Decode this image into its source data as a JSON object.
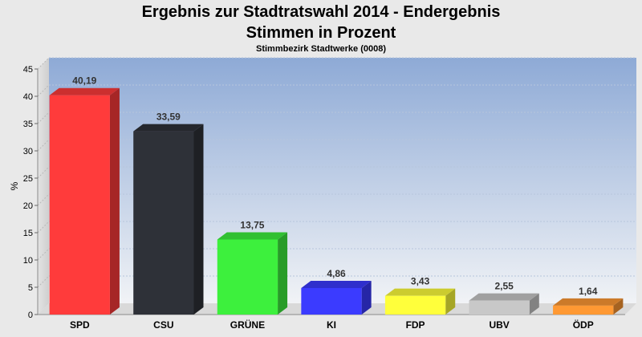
{
  "chart_data": {
    "type": "bar",
    "title_lines": [
      "Ergebnis zur Stadtratswahl 2014 - Endergebnis",
      "Stimmen in Prozent"
    ],
    "subtitle": "Stimmbezirk Stadtwerke (0008)",
    "ylabel": "%",
    "xlabel": "",
    "ylim": [
      0,
      45
    ],
    "yticks": [
      0,
      5,
      10,
      15,
      20,
      25,
      30,
      35,
      40,
      45
    ],
    "grid": true,
    "categories": [
      "SPD",
      "CSU",
      "GRÜNE",
      "KI",
      "FDP",
      "UBV",
      "ÖDP"
    ],
    "values": [
      40.19,
      33.59,
      13.75,
      4.86,
      3.43,
      2.55,
      1.64
    ],
    "value_labels": [
      "40,19",
      "33,59",
      "13,75",
      "4,86",
      "3,43",
      "2,55",
      "1,64"
    ],
    "colors": [
      "#ff3b3b",
      "#2e3138",
      "#3df03d",
      "#3b3bff",
      "#ffff3b",
      "#c8c8c8",
      "#ff9933"
    ]
  }
}
